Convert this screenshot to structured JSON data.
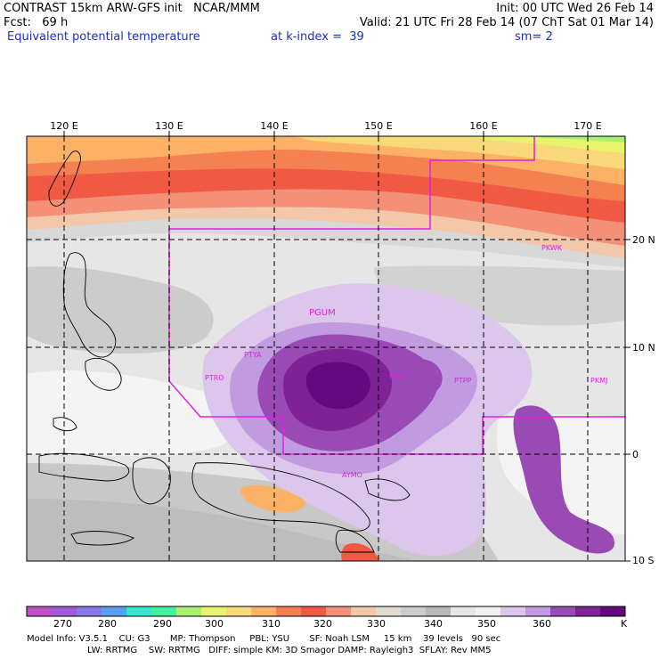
{
  "header": {
    "left1": "CONTRAST 15km ARW-GFS init   NCAR/MMM",
    "left2": "Fcst:   69 h",
    "left3": "Equivalent potential temperature",
    "right1": "Init: 00 UTC Wed 26 Feb 14",
    "right2": "Valid: 21 UTC Fri 28 Feb 14 (07 ChT Sat 01 Mar 14)",
    "right3_a": "at k-index =  39",
    "right3_b": "sm= 2"
  },
  "map": {
    "lon_labels": [
      "120 E",
      "130 E",
      "140 E",
      "150 E",
      "160 E",
      "170 E"
    ],
    "lat_labels": [
      "20 N",
      "10 N",
      "0",
      "10 S"
    ],
    "stations": [
      "PKWK",
      "PGUM",
      "PTYA",
      "PTRO",
      "PTKK",
      "PTPP",
      "PKMJ",
      "AYMO"
    ]
  },
  "colorbar": {
    "unit": "K",
    "labels": [
      "270",
      "280",
      "290",
      "300",
      "310",
      "320",
      "330",
      "340",
      "350",
      "360"
    ],
    "colors": [
      "#c050c8",
      "#a05ad8",
      "#8a78e8",
      "#5a9ef0",
      "#38e6d0",
      "#44f0a0",
      "#a8f070",
      "#e8f46e",
      "#f8d878",
      "#fbb266",
      "#f58052",
      "#f05a44",
      "#f49078",
      "#f3c8aa",
      "#e2dcd0",
      "#cccccc",
      "#b8b8b8",
      "#e6e6e6",
      "#f2f2f2",
      "#dcc6ec",
      "#c29ae0",
      "#9a4ab4",
      "#7e2296",
      "#640a7e"
    ]
  },
  "footer": {
    "line1": "Model Info: V3.5.1    CU: G3       MP: Thompson     PBL: YSU       SF: Noah LSM     15 km    39 levels   90 sec",
    "line2": "LW: RRTMG    SW: RRTMG   DIFF: simple KM: 3D Smagor DAMP: Rayleigh3  SFLAY: Rev MM5"
  }
}
